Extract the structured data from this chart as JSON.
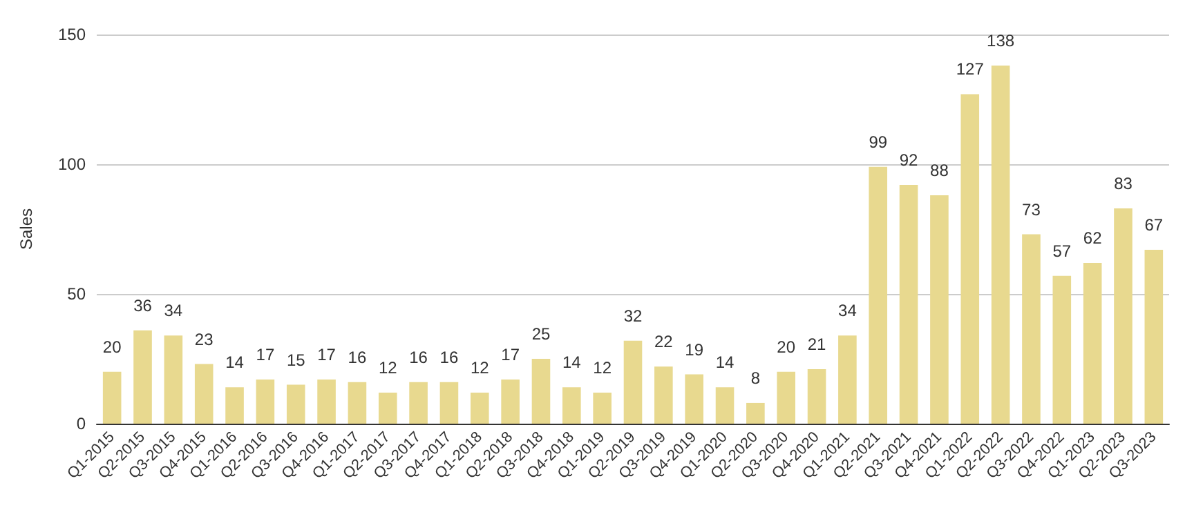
{
  "chart_data": {
    "type": "bar",
    "ylabel": "Sales",
    "categories": [
      "Q1-2015",
      "Q2-2015",
      "Q3-2015",
      "Q4-2015",
      "Q1-2016",
      "Q2-2016",
      "Q3-2016",
      "Q4-2016",
      "Q1-2017",
      "Q2-2017",
      "Q3-2017",
      "Q4-2017",
      "Q1-2018",
      "Q2-2018",
      "Q3-2018",
      "Q4-2018",
      "Q1-2019",
      "Q2-2019",
      "Q3-2019",
      "Q4-2019",
      "Q1-2020",
      "Q2-2020",
      "Q3-2020",
      "Q4-2020",
      "Q1-2021",
      "Q2-2021",
      "Q3-2021",
      "Q4-2021",
      "Q1-2022",
      "Q2-2022",
      "Q3-2022",
      "Q4-2022",
      "Q1-2023",
      "Q2-2023",
      "Q3-2023"
    ],
    "values": [
      20,
      36,
      34,
      23,
      14,
      17,
      15,
      17,
      16,
      12,
      16,
      16,
      12,
      17,
      25,
      14,
      12,
      32,
      22,
      19,
      14,
      8,
      20,
      21,
      34,
      99,
      92,
      88,
      127,
      138,
      73,
      57,
      62,
      83,
      67
    ],
    "color": "#e8d98f",
    "ylim": [
      0,
      150
    ],
    "yticks": [
      0,
      50,
      100,
      150
    ],
    "grid": "y",
    "data_labels": true
  }
}
